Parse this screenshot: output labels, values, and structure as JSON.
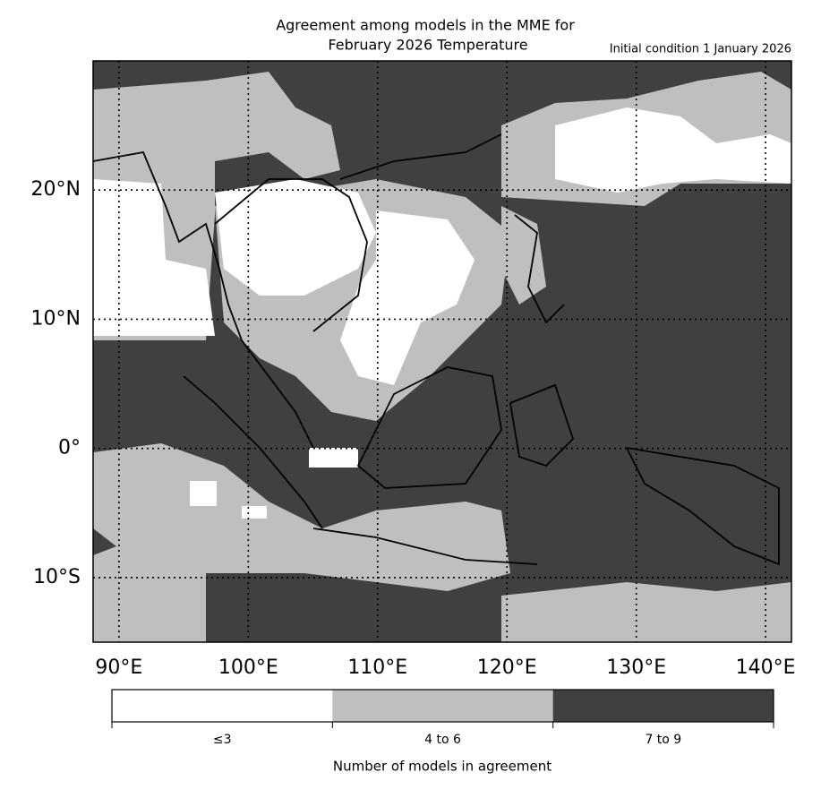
{
  "title": [
    "Agreement among models in the MME for",
    "February 2026  Temperature"
  ],
  "subtitle": "Initial condition 1 January 2026",
  "map": {
    "xlim": [
      88,
      142
    ],
    "ylim": [
      -15,
      30
    ],
    "xticks": [
      {
        "value": 90,
        "label": "90°E"
      },
      {
        "value": 100,
        "label": "100°E"
      },
      {
        "value": 110,
        "label": "110°E"
      },
      {
        "value": 120,
        "label": "120°E"
      },
      {
        "value": 130,
        "label": "130°E"
      },
      {
        "value": 140,
        "label": "140°E"
      }
    ],
    "yticks": [
      {
        "value": 20,
        "label": "20°N"
      },
      {
        "value": 10,
        "label": "10°N"
      },
      {
        "value": 0,
        "label": "0°"
      },
      {
        "value": -10,
        "label": "10°S"
      }
    ]
  },
  "colorbar": {
    "categories": [
      {
        "label": "≤3",
        "color": "#ffffff"
      },
      {
        "label": "4 to 6",
        "color": "#bfbfbf"
      },
      {
        "label": "7 to 9",
        "color": "#404040"
      }
    ],
    "title": "Number of models in agreement"
  }
}
